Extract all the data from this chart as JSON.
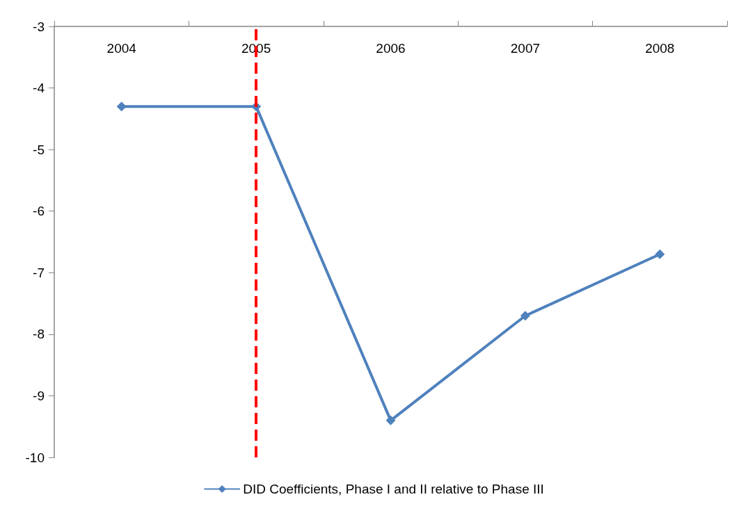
{
  "chart_data": {
    "type": "line",
    "categories": [
      "2004",
      "2005",
      "2006",
      "2007",
      "2008"
    ],
    "series": [
      {
        "name": "DID Coefficients, Phase I and II relative to Phase III",
        "color": "#4f81bd",
        "values": [
          -4.3,
          -4.3,
          -9.4,
          -7.7,
          -6.7
        ]
      }
    ],
    "ylim": [
      -10,
      -3
    ],
    "yticks": [
      -10,
      -9,
      -8,
      -7,
      -6,
      -5,
      -4,
      -3
    ],
    "grid": false,
    "legend": "bottom",
    "marker": "diamond",
    "line_style": "solid",
    "ref_lines": [
      {
        "axis": "x",
        "value": "2005",
        "color": "#ff0000",
        "line_style": "dashed"
      }
    ]
  }
}
